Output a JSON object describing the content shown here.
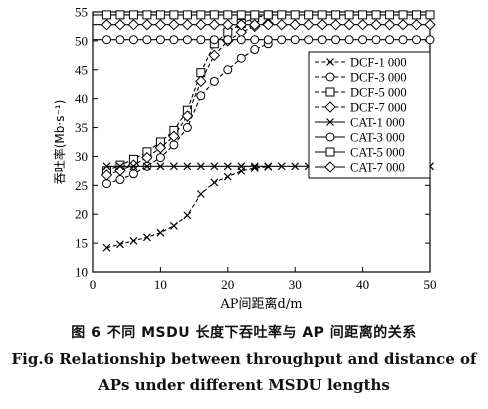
{
  "chart_data": {
    "type": "line",
    "xlabel": "AP间距离d/m",
    "ylabel": "吞吐率(Mb·s⁻¹)",
    "xlim": [
      0,
      50
    ],
    "ylim": [
      10,
      55
    ],
    "xticks": [
      "0",
      "10",
      "20",
      "30",
      "40",
      "50"
    ],
    "yticks": [
      "10",
      "15",
      "20",
      "25",
      "30",
      "35",
      "40",
      "45",
      "50",
      "55"
    ],
    "grid": false,
    "legend_position": "right",
    "x": [
      2,
      4,
      6,
      8,
      10,
      12,
      14,
      16,
      18,
      20,
      22,
      24,
      26
    ],
    "series": [
      {
        "name": "DCF-1 000",
        "style": "dashed",
        "marker": "x",
        "x": [
          2,
          4,
          6,
          8,
          10,
          12,
          14,
          16,
          18,
          20,
          22,
          24,
          26
        ],
        "values": [
          14.2,
          14.8,
          15.4,
          16.0,
          16.8,
          18.0,
          19.8,
          23.5,
          25.5,
          26.5,
          27.5,
          28.0,
          28.2
        ]
      },
      {
        "name": "DCF-3 000",
        "style": "dashed",
        "marker": "circle",
        "x": [
          2,
          4,
          6,
          8,
          10,
          12,
          14,
          16,
          18,
          20,
          22,
          24,
          26
        ],
        "values": [
          25.3,
          26.0,
          27.0,
          28.3,
          29.8,
          32.0,
          35.0,
          40.5,
          43.0,
          45.0,
          47.0,
          48.5,
          49.5
        ]
      },
      {
        "name": "DCF-5 000",
        "style": "dashed",
        "marker": "square",
        "x": [
          2,
          4,
          6,
          8,
          10,
          12,
          14,
          16,
          18,
          20,
          22,
          24,
          26
        ],
        "values": [
          27.5,
          28.5,
          29.5,
          30.8,
          32.5,
          34.5,
          38.0,
          44.5,
          49.5,
          51.5,
          53.0,
          54.0,
          54.5
        ]
      },
      {
        "name": "DCF-7 000",
        "style": "dashed",
        "marker": "diamond",
        "x": [
          2,
          4,
          6,
          8,
          10,
          12,
          14,
          16,
          18,
          20,
          22,
          24,
          26
        ],
        "values": [
          26.8,
          27.6,
          28.5,
          29.8,
          31.5,
          33.5,
          37.0,
          43.0,
          47.5,
          50.0,
          51.5,
          52.5,
          53.0
        ]
      },
      {
        "name": "CAT-1 000",
        "style": "solid",
        "marker": "x",
        "x": [
          2,
          4,
          6,
          8,
          10,
          12,
          14,
          16,
          18,
          20,
          22,
          24,
          26,
          28,
          30,
          32,
          34,
          36,
          38,
          40,
          42,
          44,
          46,
          48,
          50
        ],
        "values": [
          28.3,
          28.3,
          28.3,
          28.3,
          28.3,
          28.3,
          28.3,
          28.3,
          28.3,
          28.3,
          28.3,
          28.3,
          28.3,
          28.3,
          28.3,
          28.3,
          28.3,
          28.3,
          28.3,
          28.3,
          28.3,
          28.3,
          28.3,
          28.3,
          28.3
        ]
      },
      {
        "name": "CAT-3 000",
        "style": "solid",
        "marker": "circle",
        "x": [
          0,
          50
        ],
        "values": [
          50.2,
          50.2
        ]
      },
      {
        "name": "CAT-5 000",
        "style": "solid",
        "marker": "square",
        "x": [
          0,
          50
        ],
        "values": [
          54.5,
          54.5
        ]
      },
      {
        "name": "CAT-7 000",
        "style": "solid",
        "marker": "diamond",
        "x": [
          0,
          50
        ],
        "values": [
          52.8,
          52.8
        ]
      }
    ]
  },
  "captions": {
    "cn": "图 6   不同 MSDU 长度下吞吐率与 AP 间距离的关系",
    "en_line1": "Fig.6    Relationship between throughput and distance of",
    "en_line2": "APs under different MSDU lengths"
  }
}
